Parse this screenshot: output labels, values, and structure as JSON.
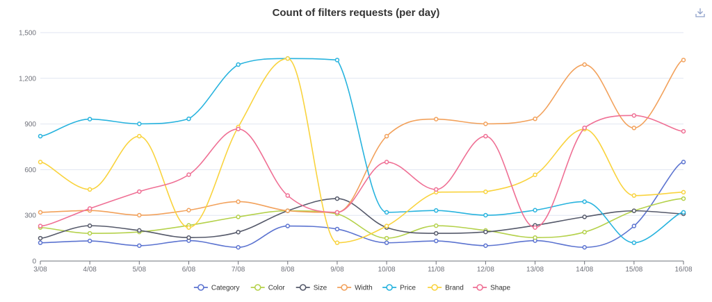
{
  "chart_data": {
    "type": "line",
    "title": "Count of filters requests (per day)",
    "smooth": true,
    "legend_position": "bottom-center",
    "grid": "horizontal",
    "ylim": [
      0,
      1500
    ],
    "y_ticks": [
      "0",
      "300",
      "600",
      "900",
      "1,200",
      "1,500"
    ],
    "categories": [
      "3/08",
      "4/08",
      "5/08",
      "6/08",
      "7/08",
      "8/08",
      "9/08",
      "10/08",
      "11/08",
      "12/08",
      "13/08",
      "14/08",
      "15/08",
      "16/08"
    ],
    "series": [
      {
        "name": "Category",
        "color": "#5470c6",
        "values": [
          120,
          132,
          101,
          134,
          90,
          230,
          210,
          120,
          132,
          101,
          134,
          90,
          230,
          650
        ]
      },
      {
        "name": "Color",
        "color": "#91cc75",
        "values": [
          220,
          182,
          191,
          234,
          290,
          330,
          310,
          150,
          232,
          201,
          154,
          190,
          330,
          410
        ]
      },
      {
        "name": "Size",
        "color": "#5b5f6e",
        "values": [
          150,
          232,
          201,
          154,
          190,
          330,
          410,
          220,
          182,
          191,
          234,
          290,
          330,
          310
        ]
      },
      {
        "name": "Width",
        "color": "#fac858",
        "values": [
          320,
          332,
          301,
          334,
          390,
          330,
          320,
          820,
          932,
          901,
          934,
          1290,
          874,
          1320
        ]
      },
      {
        "name": "Price",
        "color": "#73c0de",
        "values": [
          820,
          932,
          901,
          934,
          1290,
          1330,
          1320,
          320,
          332,
          301,
          334,
          390,
          120,
          320
        ]
      },
      {
        "name": "Brand",
        "color": "#fc8452",
        "values": [
          650,
          470,
          820,
          220,
          880,
          1330,
          120,
          230,
          452,
          455,
          566,
          866,
          430,
          452
        ]
      },
      {
        "name": "Shape",
        "color": "#ee6666",
        "values": [
          230,
          345,
          456,
          567,
          867,
          430,
          320,
          650,
          470,
          820,
          220,
          875,
          956,
          852
        ]
      }
    ]
  },
  "series_colors": {
    "Category": "#5b73d0",
    "Color": "#b4d14a",
    "Size": "#55596a",
    "Width": "#f2a15b",
    "Price": "#27b3de",
    "Brand": "#f9d33d",
    "Shape": "#ef6f94"
  },
  "toolbar": {
    "download_icon": "download-icon"
  }
}
